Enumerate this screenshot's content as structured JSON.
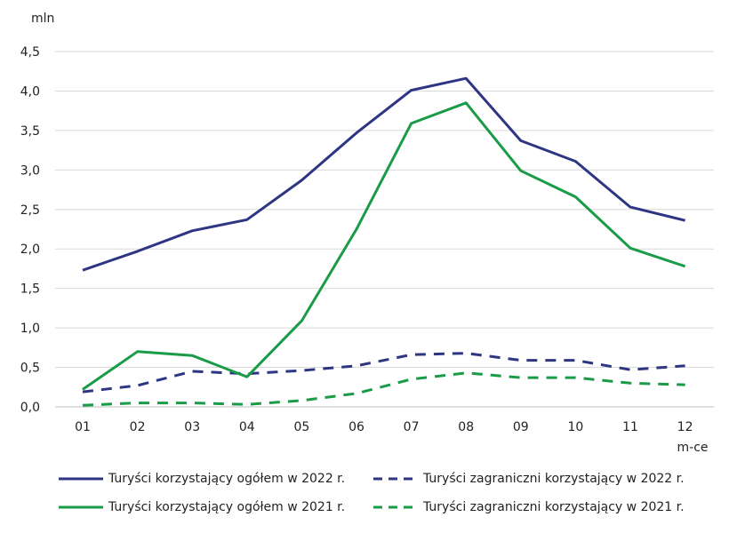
{
  "chart_data": {
    "type": "line",
    "y_unit": "mln",
    "x_unit": "m-ce",
    "categories": [
      "01",
      "02",
      "03",
      "04",
      "05",
      "06",
      "07",
      "08",
      "09",
      "10",
      "11",
      "12"
    ],
    "ylim": [
      0,
      4.5
    ],
    "yticks": [
      0,
      0.5,
      1.0,
      1.5,
      2.0,
      2.5,
      3.0,
      3.5,
      4.0,
      4.5
    ],
    "ytick_labels": [
      "0,0",
      "0,5",
      "1,0",
      "1,5",
      "2,0",
      "2,5",
      "3,0",
      "3,5",
      "4,0",
      "4,5"
    ],
    "grid": true,
    "series": [
      {
        "name": "Turyści korzystający ogółem w 2022 r.",
        "color": "#2e3583",
        "dash": "solid",
        "values": [
          1.73,
          1.97,
          2.23,
          2.37,
          2.87,
          3.47,
          4.01,
          4.16,
          3.37,
          3.11,
          2.53,
          2.36
        ]
      },
      {
        "name": "Turyści zagraniczni korzystający w 2022 r.",
        "color": "#2e3583",
        "dash": "dashed",
        "values": [
          0.19,
          0.27,
          0.45,
          0.42,
          0.46,
          0.52,
          0.66,
          0.68,
          0.59,
          0.59,
          0.47,
          0.52
        ]
      },
      {
        "name": "Turyści korzystający ogółem w 2021 r.",
        "color": "#1a9b47",
        "dash": "solid",
        "values": [
          0.22,
          0.7,
          0.65,
          0.38,
          1.09,
          2.25,
          3.59,
          3.85,
          2.99,
          2.66,
          2.01,
          1.78
        ]
      },
      {
        "name": "Turyści zagraniczni korzystający w 2021 r.",
        "color": "#1a9b47",
        "dash": "dashed",
        "values": [
          0.02,
          0.05,
          0.05,
          0.03,
          0.08,
          0.17,
          0.35,
          0.43,
          0.37,
          0.37,
          0.3,
          0.28
        ]
      }
    ]
  }
}
